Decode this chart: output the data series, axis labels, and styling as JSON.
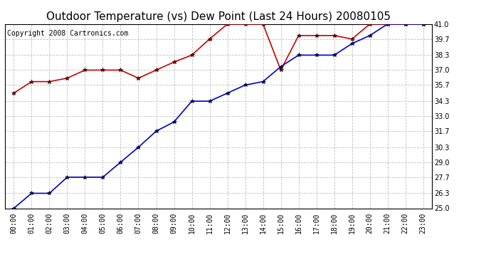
{
  "title": "Outdoor Temperature (vs) Dew Point (Last 24 Hours) 20080105",
  "copyright": "Copyright 2008 Cartronics.com",
  "hours": [
    "00:00",
    "01:00",
    "02:00",
    "03:00",
    "04:00",
    "05:00",
    "06:00",
    "07:00",
    "08:00",
    "09:00",
    "10:00",
    "11:00",
    "12:00",
    "13:00",
    "14:00",
    "15:00",
    "16:00",
    "17:00",
    "18:00",
    "19:00",
    "20:00",
    "21:00",
    "22:00",
    "23:00"
  ],
  "temp": [
    35.0,
    36.0,
    36.0,
    36.3,
    37.0,
    37.0,
    37.0,
    36.3,
    37.0,
    37.7,
    38.3,
    39.7,
    41.0,
    41.0,
    41.0,
    37.0,
    40.0,
    40.0,
    40.0,
    39.7,
    41.0,
    41.0,
    41.0,
    41.0
  ],
  "dewpoint": [
    25.0,
    26.3,
    26.3,
    27.7,
    27.7,
    27.7,
    29.0,
    30.3,
    31.7,
    32.5,
    34.3,
    34.3,
    35.0,
    35.7,
    36.0,
    37.3,
    38.3,
    38.3,
    38.3,
    39.3,
    40.0,
    41.0,
    41.0,
    41.0
  ],
  "temp_color": "#cc0000",
  "dewpoint_color": "#0000cc",
  "bg_color": "#ffffff",
  "grid_color": "#c0c0c0",
  "ylim_min": 25.0,
  "ylim_max": 41.0,
  "yticks": [
    25.0,
    26.3,
    27.7,
    29.0,
    30.3,
    31.7,
    33.0,
    34.3,
    35.7,
    37.0,
    38.3,
    39.7,
    41.0
  ],
  "title_fontsize": 11,
  "copyright_fontsize": 7,
  "tick_fontsize": 7,
  "marker": "*",
  "marker_color": "#000000",
  "marker_size": 4,
  "line_width": 1.2
}
